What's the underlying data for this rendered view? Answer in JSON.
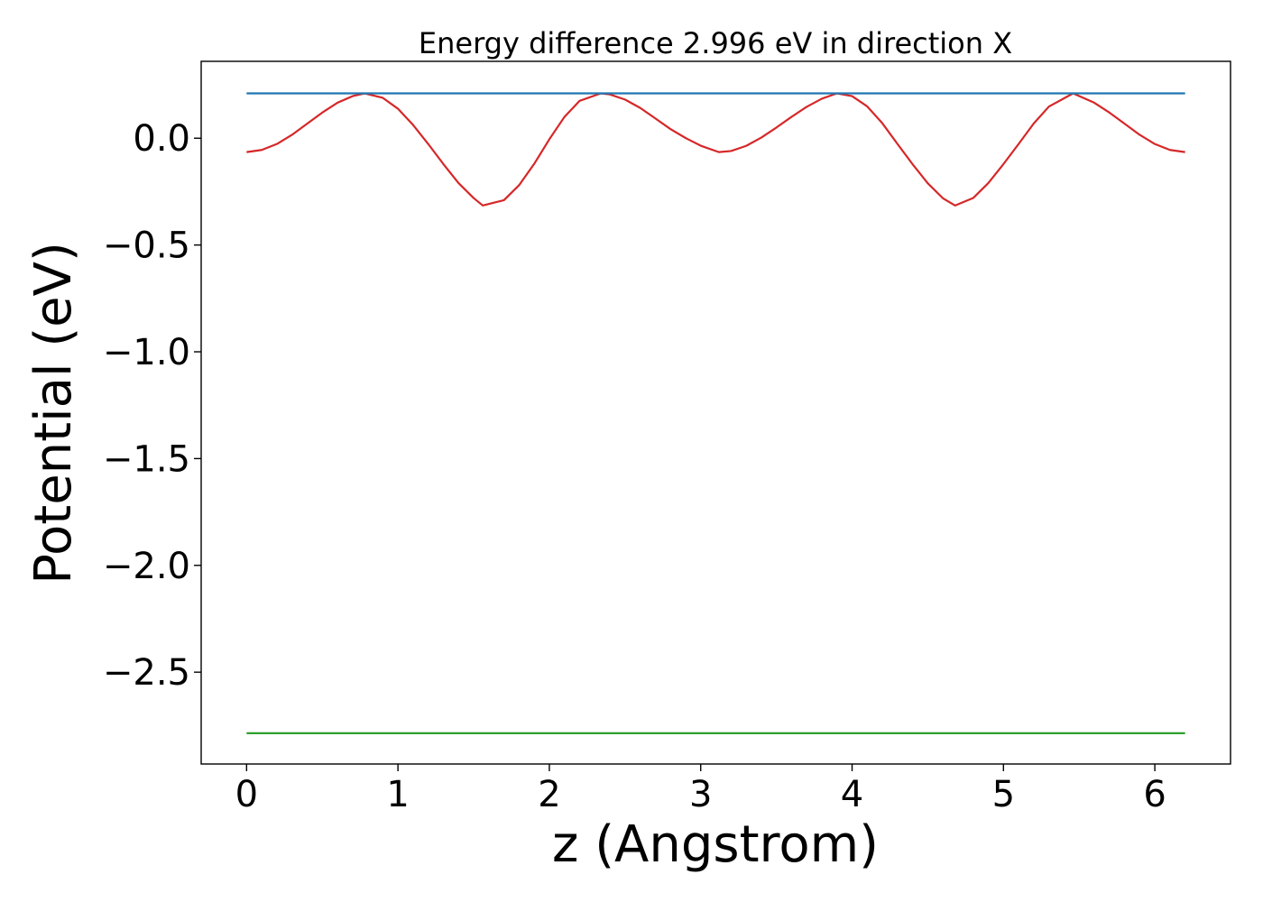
{
  "chart_data": {
    "type": "line",
    "title": "Energy difference 2.996 eV in direction X",
    "xlabel": "z (Angstrom)",
    "ylabel": "Potential (eV)",
    "xlim": [
      -0.3,
      6.5
    ],
    "ylim": [
      -2.93,
      0.36
    ],
    "x_ticks": [
      0,
      1,
      2,
      3,
      4,
      5,
      6
    ],
    "x_tick_labels": [
      "0",
      "1",
      "2",
      "3",
      "4",
      "5",
      "6"
    ],
    "y_ticks": [
      0.0,
      -0.5,
      -1.0,
      -1.5,
      -2.0,
      -2.5
    ],
    "y_tick_labels": [
      "0.0",
      "−0.5",
      "−1.0",
      "−1.5",
      "−2.0",
      "−2.5"
    ],
    "grid": false,
    "legend": "none",
    "series": [
      {
        "color": "#d62728",
        "x": [
          0,
          0.1,
          0.2,
          0.3,
          0.4,
          0.5,
          0.6,
          0.7,
          0.78,
          0.9,
          1.0,
          1.1,
          1.2,
          1.3,
          1.4,
          1.5,
          1.56,
          1.7,
          1.8,
          1.9,
          2.0,
          2.1,
          2.2,
          2.34,
          2.4,
          2.5,
          2.6,
          2.7,
          2.8,
          2.9,
          3.0,
          3.12,
          3.2,
          3.3,
          3.4,
          3.5,
          3.6,
          3.7,
          3.8,
          3.9,
          4.0,
          4.1,
          4.2,
          4.3,
          4.4,
          4.5,
          4.6,
          4.68,
          4.8,
          4.9,
          5.0,
          5.1,
          5.2,
          5.3,
          5.46,
          5.6,
          5.7,
          5.8,
          5.9,
          6.0,
          6.1,
          6.2
        ],
        "y": [
          -0.065,
          -0.055,
          -0.027,
          0.016,
          0.068,
          0.12,
          0.166,
          0.197,
          0.21,
          0.189,
          0.138,
          0.062,
          -0.027,
          -0.121,
          -0.21,
          -0.28,
          -0.315,
          -0.29,
          -0.22,
          -0.12,
          -0.005,
          0.1,
          0.175,
          0.21,
          0.205,
          0.181,
          0.142,
          0.093,
          0.043,
          0.001,
          -0.035,
          -0.065,
          -0.06,
          -0.036,
          0.003,
          0.05,
          0.1,
          0.147,
          0.185,
          0.21,
          0.197,
          0.149,
          0.07,
          -0.027,
          -0.122,
          -0.211,
          -0.281,
          -0.315,
          -0.28,
          -0.21,
          -0.121,
          -0.027,
          0.069,
          0.148,
          0.21,
          0.166,
          0.12,
          0.068,
          0.016,
          -0.027,
          -0.055,
          -0.065
        ]
      },
      {
        "color": "#1f77b4",
        "x": [
          0,
          6.2
        ],
        "y": [
          0.21,
          0.21
        ]
      },
      {
        "color": "#2ca02c",
        "x": [
          0,
          6.2
        ],
        "y": [
          -2.786,
          -2.786
        ]
      }
    ]
  }
}
